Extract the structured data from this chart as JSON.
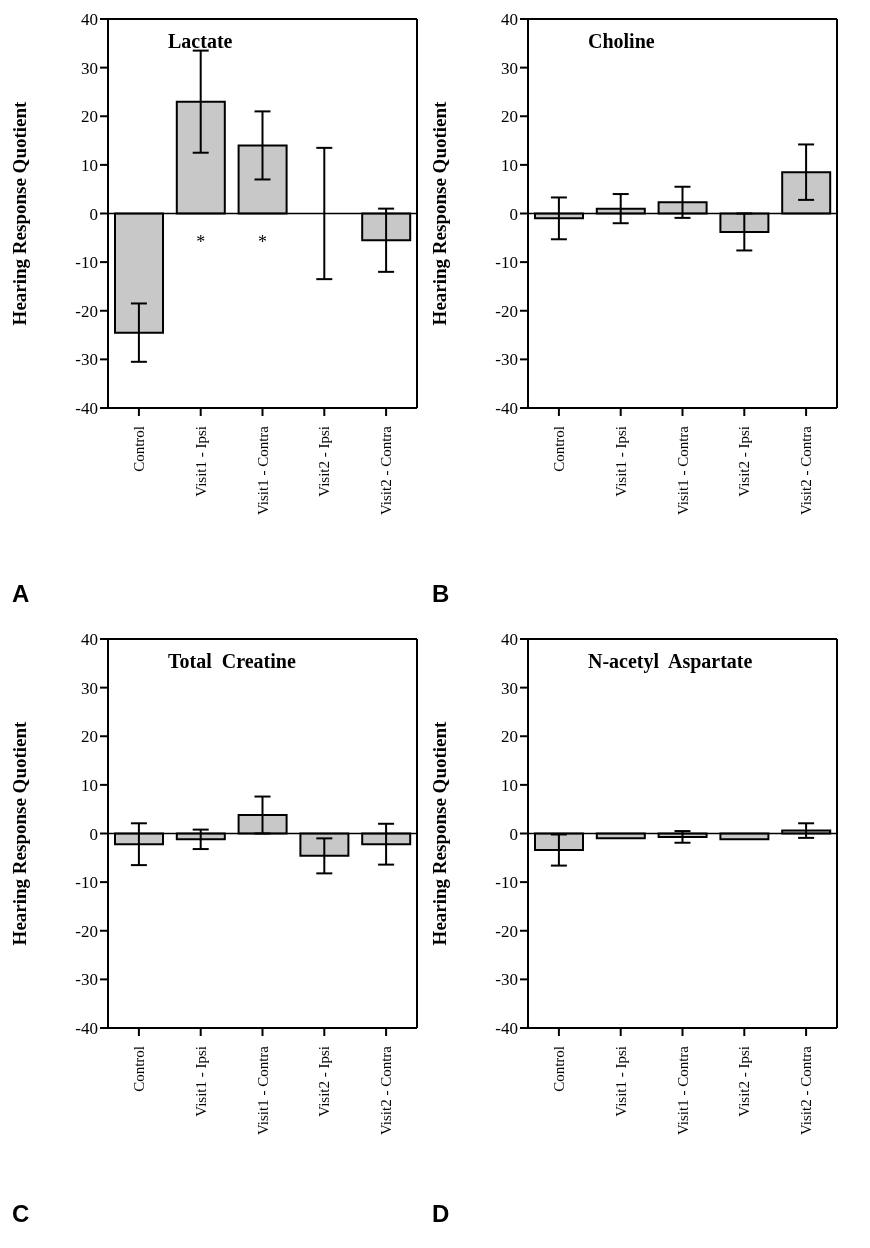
{
  "chart_data": [
    {
      "type": "bar",
      "title": "Lactate",
      "ylabel": "Hearing Response Quotient",
      "categories": [
        "Control",
        "Visit1 - Ipsi",
        "Visit1 - Contra",
        "Visit2 - Ipsi",
        "Visit2 - Contra"
      ],
      "values": [
        -24.5,
        23,
        14,
        0,
        -5.5
      ],
      "errors": [
        6,
        10.5,
        7,
        13.5,
        6.5
      ],
      "color": "#c8c8c8",
      "ylim": [
        -40,
        40
      ],
      "yticks": [
        -40,
        -30,
        -20,
        -10,
        0,
        10,
        20,
        30,
        40
      ],
      "grid": false,
      "ref_lines": [
        {
          "axis": "y",
          "value": 0
        }
      ],
      "annotations": [
        "*",
        "*",
        "A"
      ]
    },
    {
      "type": "bar",
      "title": "Choline",
      "ylabel": "Hearing Response Quotient",
      "categories": [
        "Control",
        "Visit1 - Ipsi",
        "Visit1 - Contra",
        "Visit2 - Ipsi",
        "Visit2 - Contra"
      ],
      "values": [
        -1,
        1,
        2.3,
        -3.8,
        8.5
      ],
      "errors": [
        4.3,
        3,
        3.2,
        3.8,
        5.7
      ],
      "color": "#c8c8c8",
      "ylim": [
        -40,
        40
      ],
      "yticks": [
        -40,
        -30,
        -20,
        -10,
        0,
        10,
        20,
        30,
        40
      ],
      "grid": false,
      "ref_lines": [
        {
          "axis": "y",
          "value": 0
        }
      ],
      "annotations": [
        "B"
      ]
    },
    {
      "type": "bar",
      "title": "Total  Creatine",
      "ylabel": "Hearing Response Quotient",
      "categories": [
        "Control",
        "Visit1 - Ipsi",
        "Visit1 - Contra",
        "Visit2 - Ipsi",
        "Visit2 - Contra"
      ],
      "values": [
        -2.2,
        -1.2,
        3.8,
        -4.6,
        -2.2
      ],
      "errors": [
        4.3,
        2,
        3.8,
        3.6,
        4.2
      ],
      "color": "#c8c8c8",
      "ylim": [
        -40,
        40
      ],
      "yticks": [
        -40,
        -30,
        -20,
        -10,
        0,
        10,
        20,
        30,
        40
      ],
      "grid": false,
      "ref_lines": [
        {
          "axis": "y",
          "value": 0
        }
      ],
      "annotations": [
        "C"
      ]
    },
    {
      "type": "bar",
      "title": "N-acetyl  Aspartate",
      "ylabel": "Hearing Response Quotient",
      "categories": [
        "Control",
        "Visit1 - Ipsi",
        "Visit1 - Contra",
        "Visit2 - Ipsi",
        "Visit2 - Contra"
      ],
      "values": [
        -3.4,
        -1,
        -0.7,
        -1.2,
        0.6
      ],
      "errors": [
        3.2,
        null,
        1.2,
        null,
        1.5
      ],
      "color": "#c8c8c8",
      "ylim": [
        -40,
        40
      ],
      "yticks": [
        -40,
        -30,
        -20,
        -10,
        0,
        10,
        20,
        30,
        40
      ],
      "grid": false,
      "ref_lines": [
        {
          "axis": "y",
          "value": 0
        }
      ],
      "annotations": [
        "D"
      ]
    }
  ]
}
